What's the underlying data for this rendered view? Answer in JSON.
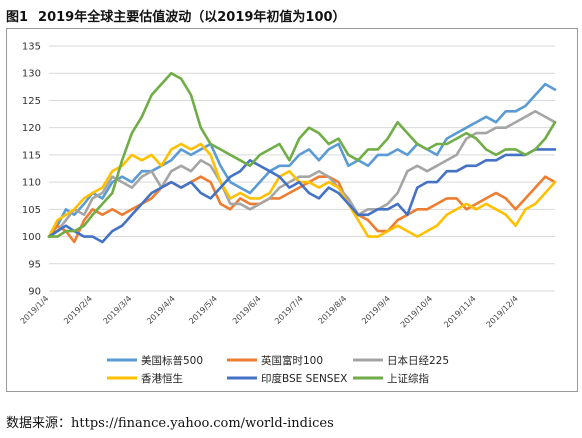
{
  "figure": {
    "number": "图1",
    "title": "2019年全球主要估值波动（以2019年初值为100）",
    "source": "数据来源：https://finance.yahoo.com/world-indices"
  },
  "chart_data": {
    "type": "line",
    "ylim": [
      90,
      135
    ],
    "yticks": [
      90,
      95,
      100,
      105,
      110,
      115,
      120,
      125,
      130,
      135
    ],
    "xlim": [
      0,
      360
    ],
    "xticks": [
      {
        "label": "2019/1/4",
        "x": 0
      },
      {
        "label": "2019/2/4",
        "x": 31
      },
      {
        "label": "2019/3/4",
        "x": 59
      },
      {
        "label": "2019/4/4",
        "x": 90
      },
      {
        "label": "2019/5/4",
        "x": 120
      },
      {
        "label": "2019/6/4",
        "x": 151
      },
      {
        "label": "2019/7/4",
        "x": 181
      },
      {
        "label": "2019/8/4",
        "x": 212
      },
      {
        "label": "2019/9/4",
        "x": 243
      },
      {
        "label": "2019/10/4",
        "x": 273
      },
      {
        "label": "2019/11/4",
        "x": 304
      },
      {
        "label": "2019/12/4",
        "x": 334
      }
    ],
    "grid": true,
    "legend_position": "bottom",
    "series": [
      {
        "name": "美国标普500",
        "color": "#5b9bd5",
        "x": [
          0,
          6,
          12,
          18,
          25,
          31,
          38,
          45,
          52,
          59,
          66,
          73,
          80,
          87,
          94,
          101,
          108,
          115,
          122,
          129,
          136,
          143,
          150,
          157,
          164,
          171,
          178,
          185,
          192,
          199,
          206,
          213,
          220,
          227,
          234,
          241,
          248,
          255,
          262,
          269,
          276,
          283,
          290,
          297,
          304,
          311,
          318,
          325,
          332,
          339,
          346,
          353,
          360
        ],
        "y": [
          100,
          102,
          105,
          104,
          106,
          108,
          107,
          110,
          111,
          110,
          112,
          112,
          113,
          114,
          116,
          115,
          116,
          117,
          113,
          110,
          109,
          108,
          110,
          112,
          113,
          113,
          115,
          116,
          114,
          116,
          117,
          113,
          114,
          113,
          115,
          115,
          116,
          115,
          117,
          116,
          115,
          118,
          119,
          120,
          121,
          122,
          121,
          123,
          123,
          124,
          126,
          128,
          127
        ]
      },
      {
        "name": "英国富时100",
        "color": "#ed7d31",
        "x": [
          0,
          6,
          12,
          18,
          25,
          31,
          38,
          45,
          52,
          59,
          66,
          73,
          80,
          87,
          94,
          101,
          108,
          115,
          122,
          129,
          136,
          143,
          150,
          157,
          164,
          171,
          178,
          185,
          192,
          199,
          206,
          213,
          220,
          227,
          234,
          241,
          248,
          255,
          262,
          269,
          276,
          283,
          290,
          297,
          304,
          311,
          318,
          325,
          332,
          339,
          346,
          353,
          360
        ],
        "y": [
          100,
          102,
          101,
          99,
          103,
          105,
          104,
          105,
          104,
          105,
          106,
          107,
          109,
          110,
          109,
          110,
          111,
          110,
          106,
          105,
          107,
          106,
          106,
          107,
          107,
          108,
          109,
          110,
          111,
          111,
          110,
          106,
          104,
          103,
          101,
          101,
          103,
          104,
          105,
          105,
          106,
          107,
          107,
          105,
          106,
          107,
          108,
          107,
          105,
          107,
          109,
          111,
          110
        ]
      },
      {
        "name": "日本日经225",
        "color": "#a5a5a5",
        "x": [
          0,
          6,
          12,
          18,
          25,
          31,
          38,
          45,
          52,
          59,
          66,
          73,
          80,
          87,
          94,
          101,
          108,
          115,
          122,
          129,
          136,
          143,
          150,
          157,
          164,
          171,
          178,
          185,
          192,
          199,
          206,
          213,
          220,
          227,
          234,
          241,
          248,
          255,
          262,
          269,
          276,
          283,
          290,
          297,
          304,
          311,
          318,
          325,
          332,
          339,
          346,
          353,
          360
        ],
        "y": [
          100,
          101,
          103,
          105,
          104,
          107,
          108,
          111,
          110,
          109,
          111,
          112,
          109,
          112,
          113,
          112,
          114,
          113,
          110,
          106,
          106,
          105,
          106,
          107,
          109,
          110,
          111,
          111,
          112,
          111,
          109,
          107,
          104,
          105,
          105,
          106,
          108,
          112,
          113,
          112,
          113,
          114,
          115,
          118,
          119,
          119,
          120,
          120,
          121,
          122,
          123,
          122,
          121
        ]
      },
      {
        "name": "香港恒生",
        "color": "#ffc000",
        "x": [
          0,
          6,
          12,
          18,
          25,
          31,
          38,
          45,
          52,
          59,
          66,
          73,
          80,
          87,
          94,
          101,
          108,
          115,
          122,
          129,
          136,
          143,
          150,
          157,
          164,
          171,
          178,
          185,
          192,
          199,
          206,
          213,
          220,
          227,
          234,
          241,
          248,
          255,
          262,
          269,
          276,
          283,
          290,
          297,
          304,
          311,
          318,
          325,
          332,
          339,
          346,
          353,
          360
        ],
        "y": [
          100,
          103,
          104,
          105,
          107,
          108,
          109,
          112,
          113,
          115,
          114,
          115,
          113,
          116,
          117,
          116,
          117,
          115,
          110,
          107,
          108,
          107,
          107,
          108,
          111,
          112,
          110,
          110,
          109,
          110,
          109,
          106,
          103,
          100,
          100,
          101,
          102,
          101,
          100,
          101,
          102,
          104,
          105,
          106,
          105,
          106,
          105,
          104,
          102,
          105,
          106,
          108,
          110
        ]
      },
      {
        "name": "印度BSE SENSEX",
        "color": "#4472c4",
        "x": [
          0,
          6,
          12,
          18,
          25,
          31,
          38,
          45,
          52,
          59,
          66,
          73,
          80,
          87,
          94,
          101,
          108,
          115,
          122,
          129,
          136,
          143,
          150,
          157,
          164,
          171,
          178,
          185,
          192,
          199,
          206,
          213,
          220,
          227,
          234,
          241,
          248,
          255,
          262,
          269,
          276,
          283,
          290,
          297,
          304,
          311,
          318,
          325,
          332,
          339,
          346,
          353,
          360
        ],
        "y": [
          100,
          101,
          102,
          101,
          100,
          100,
          99,
          101,
          102,
          104,
          106,
          108,
          109,
          110,
          109,
          110,
          108,
          107,
          109,
          111,
          112,
          114,
          113,
          112,
          111,
          109,
          110,
          108,
          107,
          109,
          108,
          106,
          104,
          104,
          105,
          105,
          106,
          104,
          109,
          110,
          110,
          112,
          112,
          113,
          113,
          114,
          114,
          115,
          115,
          115,
          116,
          116,
          116
        ]
      },
      {
        "name": "上证综指",
        "color": "#70ad47",
        "x": [
          0,
          6,
          12,
          18,
          25,
          31,
          38,
          45,
          52,
          59,
          66,
          73,
          80,
          87,
          94,
          101,
          108,
          115,
          122,
          129,
          136,
          143,
          150,
          157,
          164,
          171,
          178,
          185,
          192,
          199,
          206,
          213,
          220,
          227,
          234,
          241,
          248,
          255,
          262,
          269,
          276,
          283,
          290,
          297,
          304,
          311,
          318,
          325,
          332,
          339,
          346,
          353,
          360
        ],
        "y": [
          100,
          100,
          101,
          101,
          102,
          104,
          106,
          108,
          114,
          119,
          122,
          126,
          128,
          130,
          129,
          126,
          120,
          117,
          116,
          115,
          114,
          113,
          115,
          116,
          117,
          114,
          118,
          120,
          119,
          117,
          118,
          115,
          114,
          116,
          116,
          118,
          121,
          119,
          117,
          116,
          117,
          117,
          118,
          119,
          118,
          116,
          115,
          116,
          116,
          115,
          116,
          118,
          121
        ]
      }
    ]
  }
}
